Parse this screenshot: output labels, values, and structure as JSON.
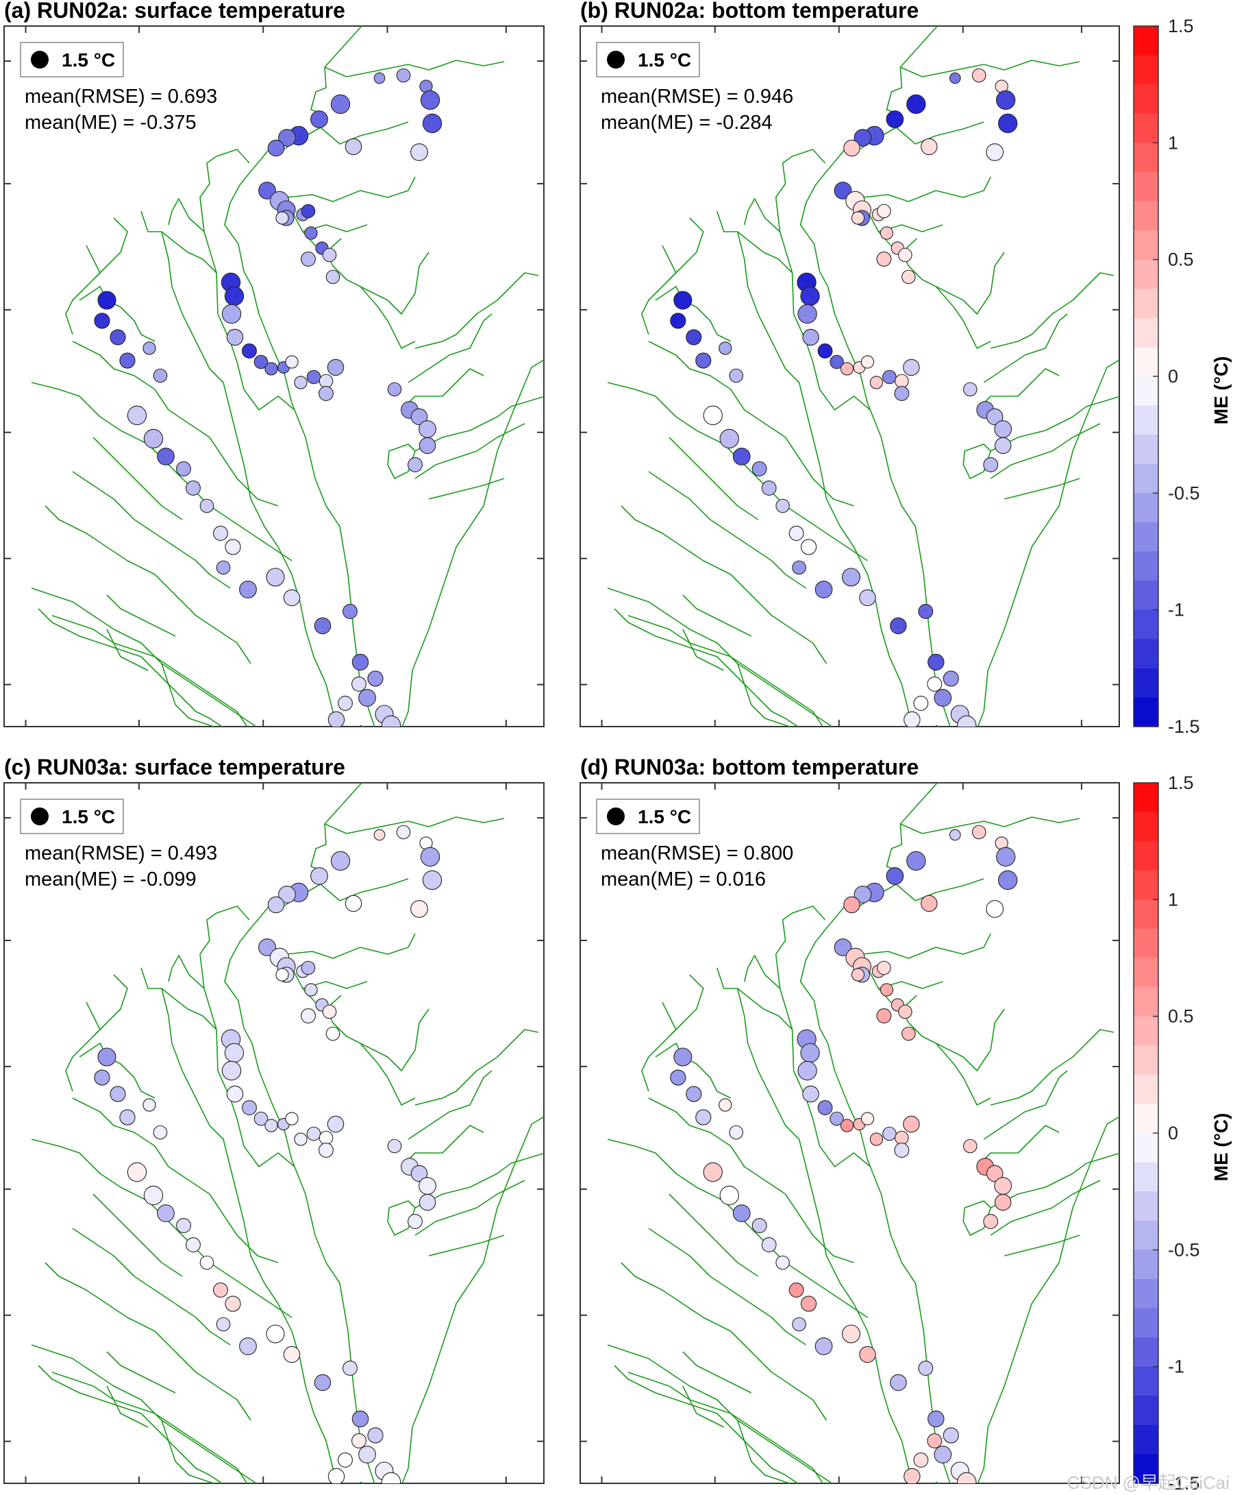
{
  "watermark": "CSDN @早起CaiCai",
  "chart_data": [
    {
      "type": "scatter",
      "title": "(a) RUN02a: surface temperature",
      "legend_marker": "1.5 °C",
      "stats": [
        "mean(RMSE) = 0.693",
        "mean(ME) = -0.375"
      ],
      "mean_rmse": 0.693,
      "mean_me": -0.375,
      "colorbar": {
        "label": "ME (°C)",
        "range": [
          -1.5,
          1.5
        ],
        "ticks": [
          "1.5",
          "1",
          "0.5",
          "0",
          "-0.5",
          "-1",
          "-1.5"
        ]
      },
      "stations_me": [
        -0.6,
        -0.5,
        -0.7,
        -0.9,
        -1.0,
        -0.2,
        -0.8,
        -0.9,
        -1.1,
        -0.8,
        -0.8,
        -0.3,
        -0.9,
        -0.5,
        -0.7,
        -0.6,
        -0.6,
        -1.1,
        -0.8,
        -0.9,
        -0.3,
        -0.3,
        -0.4,
        -0.2,
        -1.2,
        -1.2,
        -0.5,
        -0.4,
        -1.2,
        -0.9,
        -0.8,
        -0.8,
        -0.1,
        -0.3,
        -0.8,
        -0.2,
        -0.4,
        -0.5,
        -0.5,
        -0.6,
        -0.5,
        -0.4,
        -0.5,
        -0.4,
        -1.3,
        -1.2,
        -1.0,
        -0.9,
        -0.5,
        -0.5,
        -0.3,
        -0.4,
        -0.9,
        -0.5,
        -0.4,
        -0.3,
        -0.2,
        -0.1,
        -0.5,
        -0.6,
        -0.3,
        -0.2,
        -0.8,
        -0.7,
        -0.8,
        -0.6,
        -0.6,
        -0.3,
        -0.3,
        -0.4,
        -0.2,
        -0.2,
        -0.3
      ]
    },
    {
      "type": "scatter",
      "title": "(b) RUN02a: bottom temperature",
      "legend_marker": "1.5 °C",
      "stats": [
        "mean(RMSE) = 0.946",
        "mean(ME) = -0.284"
      ],
      "mean_rmse": 0.946,
      "mean_me": -0.284,
      "colorbar": {
        "label": "ME (°C)",
        "range": [
          -1.5,
          1.5
        ],
        "ticks": [
          "1.5",
          "1",
          "0.5",
          "0",
          "-0.5",
          "-1",
          "-1.5"
        ]
      },
      "stations_me": [
        -0.8,
        0.3,
        0.2,
        -1.1,
        -1.2,
        -0.1,
        -1.3,
        -1.3,
        -1.0,
        -1.0,
        0.3,
        0.2,
        -1.0,
        0.1,
        0.2,
        -0.8,
        0.2,
        0.1,
        0.3,
        0.3,
        0.1,
        0.2,
        0.3,
        0.2,
        -1.3,
        -1.2,
        -0.7,
        -0.5,
        -1.3,
        -0.9,
        0.4,
        0.2,
        0.1,
        0.3,
        -0.7,
        0.2,
        -0.5,
        -0.3,
        -0.3,
        -0.6,
        -0.4,
        -0.4,
        -0.3,
        -0.4,
        -1.3,
        -1.3,
        -1.1,
        -0.9,
        -0.5,
        -0.4,
        0.0,
        -0.4,
        -1.0,
        -0.6,
        -0.4,
        -0.3,
        -0.1,
        0.0,
        -0.6,
        -0.7,
        -0.5,
        -0.3,
        -1.0,
        -0.9,
        -1.0,
        -0.6,
        -0.7,
        -0.3,
        -0.2,
        -0.1,
        0.0,
        0.0,
        -0.1
      ]
    },
    {
      "type": "scatter",
      "title": "(c) RUN03a: surface temperature",
      "legend_marker": "1.5 °C",
      "stats": [
        "mean(RMSE) = 0.493",
        "mean(ME) = -0.099"
      ],
      "mean_rmse": 0.493,
      "mean_me": -0.099,
      "colorbar": {
        "label": "ME (°C)",
        "range": [
          -1.5,
          1.5
        ],
        "ticks": [
          "1.5",
          "1",
          "0.5",
          "0",
          "-0.5",
          "-1",
          "-1.5"
        ]
      },
      "stations_me": [
        0.2,
        -0.1,
        0.0,
        -0.5,
        -0.3,
        0.1,
        -0.4,
        -0.3,
        -0.6,
        -0.3,
        -0.3,
        0.0,
        -0.5,
        -0.1,
        -0.3,
        -0.2,
        -0.2,
        -0.4,
        -0.2,
        -0.3,
        0.1,
        0.0,
        -0.1,
        0.0,
        -0.3,
        -0.2,
        -0.2,
        -0.1,
        -0.4,
        -0.3,
        -0.2,
        -0.3,
        0.0,
        -0.1,
        -0.2,
        0.0,
        -0.1,
        -0.2,
        -0.2,
        -0.2,
        -0.3,
        -0.1,
        -0.2,
        -0.1,
        -0.6,
        -0.5,
        -0.4,
        -0.3,
        -0.1,
        -0.1,
        0.1,
        -0.1,
        -0.4,
        -0.2,
        -0.1,
        0.0,
        0.3,
        0.2,
        -0.2,
        -0.3,
        0.0,
        0.1,
        -0.5,
        -0.2,
        -0.6,
        -0.3,
        -0.2,
        -0.1,
        0.0,
        -0.1,
        0.0,
        0.1,
        0.0
      ]
    },
    {
      "type": "scatter",
      "title": "(d) RUN03a: bottom temperature",
      "legend_marker": "1.5 °C",
      "stats": [
        "mean(RMSE) = 0.800",
        "mean(ME) = 0.016"
      ],
      "mean_rmse": 0.8,
      "mean_me": 0.016,
      "colorbar": {
        "label": "ME (°C)",
        "range": [
          -1.5,
          1.5
        ],
        "ticks": [
          "1.5",
          "1",
          "0.5",
          "0",
          "-0.5",
          "-1",
          "-1.5"
        ]
      },
      "stations_me": [
        -0.3,
        0.3,
        0.2,
        -0.6,
        -0.7,
        0.0,
        -0.7,
        -0.9,
        -0.7,
        -0.5,
        0.5,
        0.4,
        -0.6,
        0.3,
        0.3,
        -0.4,
        0.3,
        0.2,
        0.5,
        0.4,
        0.3,
        0.4,
        0.5,
        0.3,
        -0.6,
        -0.5,
        -0.4,
        -0.3,
        -0.7,
        -0.5,
        0.6,
        0.4,
        0.1,
        0.4,
        -0.3,
        0.3,
        -0.2,
        0.4,
        0.3,
        0.6,
        0.4,
        0.3,
        0.4,
        0.3,
        -0.6,
        -0.6,
        -0.5,
        -0.3,
        0.1,
        -0.1,
        0.3,
        0.0,
        -0.6,
        -0.3,
        -0.2,
        -0.1,
        0.6,
        0.5,
        -0.3,
        -0.4,
        0.2,
        0.4,
        -0.4,
        -0.3,
        -0.6,
        -0.3,
        -0.4,
        -0.1,
        0.2,
        0.3,
        0.2,
        0.4,
        0.3
      ]
    }
  ]
}
